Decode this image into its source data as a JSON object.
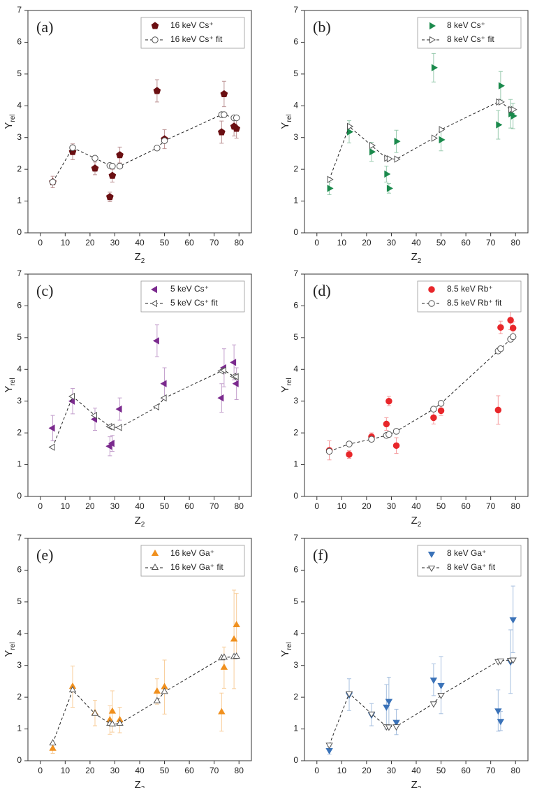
{
  "chart_data": [
    {
      "type": "scatter",
      "label": "(a)",
      "x_label": {
        "text": "Z",
        "subscript": "2"
      },
      "y_label": {
        "text": "Y",
        "subscript": "rel"
      },
      "x": [
        5,
        13,
        22,
        28,
        29,
        32,
        47,
        50,
        73,
        74,
        78,
        79
      ],
      "xlim": [
        -5,
        85
      ],
      "xticks": [
        0,
        10,
        20,
        30,
        40,
        50,
        60,
        70,
        80
      ],
      "ylim": [
        0,
        7
      ],
      "yticks": [
        0,
        1,
        2,
        3,
        4,
        5,
        6,
        7
      ],
      "legend": "upper right",
      "series": [
        {
          "name": "16 keV Cs⁺",
          "color": "#6b0f12",
          "marker": "pentagon",
          "filled": true,
          "values": [
            1.6,
            2.55,
            2.03,
            1.13,
            1.8,
            2.45,
            4.47,
            2.95,
            3.17,
            4.37,
            3.35,
            3.28
          ],
          "errors": [
            0.18,
            0.25,
            0.2,
            0.15,
            0.2,
            0.25,
            0.35,
            0.3,
            0.35,
            0.4,
            0.3,
            0.3
          ]
        },
        {
          "name": "16 keV Cs⁺ fit",
          "color": "#555555",
          "marker": "circle",
          "filled": false,
          "line": "dashed",
          "values": [
            1.6,
            2.68,
            2.35,
            2.12,
            2.1,
            2.1,
            2.67,
            2.9,
            3.72,
            3.72,
            3.62,
            3.62
          ]
        }
      ]
    },
    {
      "type": "scatter",
      "label": "(b)",
      "x_label": {
        "text": "Z",
        "subscript": "2"
      },
      "y_label": {
        "text": "Y",
        "subscript": "rel"
      },
      "x": [
        5,
        13,
        22,
        28,
        29,
        32,
        47,
        50,
        73,
        74,
        78,
        79
      ],
      "xlim": [
        -5,
        85
      ],
      "xticks": [
        0,
        10,
        20,
        30,
        40,
        50,
        60,
        70,
        80
      ],
      "ylim": [
        0,
        7
      ],
      "yticks": [
        0,
        1,
        2,
        3,
        4,
        5,
        6,
        7
      ],
      "legend": "upper right",
      "series": [
        {
          "name": "8 keV Cs⁺",
          "color": "#1b8a4c",
          "marker": "triangle-right",
          "filled": true,
          "values": [
            1.4,
            3.18,
            2.55,
            1.85,
            1.4,
            2.88,
            5.2,
            2.93,
            3.4,
            4.63,
            3.75,
            3.68
          ],
          "errors": [
            0.2,
            0.35,
            0.3,
            0.25,
            0.15,
            0.35,
            0.45,
            0.35,
            0.45,
            0.45,
            0.45,
            0.4
          ]
        },
        {
          "name": "8 keV Cs⁺ fit",
          "color": "#555555",
          "marker": "triangle-right",
          "filled": false,
          "line": "dashed",
          "values": [
            1.68,
            3.35,
            2.75,
            2.35,
            2.33,
            2.32,
            2.98,
            3.25,
            4.12,
            4.12,
            3.88,
            3.88
          ]
        }
      ]
    },
    {
      "type": "scatter",
      "label": "(c)",
      "x_label": {
        "text": "Z",
        "subscript": "2"
      },
      "y_label": {
        "text": "Y",
        "subscript": "rel"
      },
      "x": [
        5,
        13,
        22,
        28,
        29,
        32,
        47,
        50,
        73,
        74,
        78,
        79
      ],
      "xlim": [
        -5,
        85
      ],
      "xticks": [
        0,
        10,
        20,
        30,
        40,
        50,
        60,
        70,
        80
      ],
      "ylim": [
        0,
        7
      ],
      "yticks": [
        0,
        1,
        2,
        3,
        4,
        5,
        6,
        7
      ],
      "legend": "upper right",
      "series": [
        {
          "name": "5 keV Cs⁺",
          "color": "#7b2a8e",
          "marker": "triangle-left",
          "filled": true,
          "values": [
            2.15,
            3.0,
            2.43,
            1.58,
            1.67,
            2.75,
            4.9,
            3.55,
            3.1,
            4.05,
            4.22,
            3.55
          ],
          "errors": [
            0.4,
            0.4,
            0.35,
            0.3,
            0.25,
            0.35,
            0.5,
            0.5,
            0.45,
            0.6,
            0.55,
            0.5
          ]
        },
        {
          "name": "5 keV Cs⁺ fit",
          "color": "#555555",
          "marker": "triangle-left",
          "filled": false,
          "line": "dashed",
          "values": [
            1.55,
            3.15,
            2.55,
            2.2,
            2.18,
            2.17,
            2.82,
            3.1,
            3.95,
            3.97,
            3.78,
            3.77
          ]
        }
      ]
    },
    {
      "type": "scatter",
      "label": "(d)",
      "x_label": {
        "text": "Z",
        "subscript": "2"
      },
      "y_label": {
        "text": "Y",
        "subscript": "rel"
      },
      "x": [
        5,
        13,
        22,
        28,
        29,
        32,
        47,
        50,
        73,
        74,
        78,
        79
      ],
      "xlim": [
        -5,
        85
      ],
      "xticks": [
        0,
        10,
        20,
        30,
        40,
        50,
        60,
        70,
        80
      ],
      "ylim": [
        0,
        7
      ],
      "yticks": [
        0,
        1,
        2,
        3,
        4,
        5,
        6,
        7
      ],
      "legend": "upper right",
      "series": [
        {
          "name": "8.5 keV Rb⁺",
          "color": "#e8262a",
          "marker": "circle",
          "filled": true,
          "values": [
            1.45,
            1.32,
            1.88,
            2.28,
            3.0,
            1.6,
            2.48,
            2.7,
            2.72,
            5.32,
            5.55,
            5.3
          ],
          "errors": [
            0.3,
            0.12,
            0.12,
            0.2,
            0.15,
            0.25,
            0.2,
            0.15,
            0.45,
            0.2,
            0.3,
            0.2
          ]
        },
        {
          "name": "8.5 keV Rb⁺ fit",
          "color": "#555555",
          "marker": "circle",
          "filled": false,
          "line": "dashed",
          "values": [
            1.42,
            1.65,
            1.8,
            1.92,
            1.95,
            2.05,
            2.75,
            2.93,
            4.58,
            4.65,
            4.95,
            5.03
          ]
        }
      ]
    },
    {
      "type": "scatter",
      "label": "(e)",
      "x_label": {
        "text": "Z",
        "subscript": "2"
      },
      "y_label": {
        "text": "Y",
        "subscript": "rel"
      },
      "x": [
        5,
        13,
        22,
        28,
        29,
        32,
        47,
        50,
        73,
        74,
        78,
        79
      ],
      "xlim": [
        -5,
        85
      ],
      "xticks": [
        0,
        10,
        20,
        30,
        40,
        50,
        60,
        70,
        80
      ],
      "ylim": [
        0,
        7
      ],
      "yticks": [
        0,
        1,
        2,
        3,
        4,
        5,
        6,
        7
      ],
      "legend": "upper right",
      "series": [
        {
          "name": "16 keV Ga⁺",
          "color": "#f0901e",
          "marker": "triangle-up",
          "filled": true,
          "values": [
            0.38,
            2.33,
            1.5,
            1.28,
            1.55,
            1.28,
            2.18,
            2.32,
            1.53,
            2.93,
            3.82,
            4.27
          ],
          "errors": [
            0.15,
            0.65,
            0.4,
            0.45,
            0.65,
            0.4,
            0.4,
            0.85,
            0.6,
            0.65,
            1.55,
            1.0
          ]
        },
        {
          "name": "16 keV Ga⁺ fit",
          "color": "#555555",
          "marker": "triangle-up",
          "filled": false,
          "line": "dashed",
          "values": [
            0.55,
            2.22,
            1.48,
            1.17,
            1.15,
            1.17,
            1.88,
            2.17,
            3.23,
            3.25,
            3.27,
            3.28
          ]
        }
      ]
    },
    {
      "type": "scatter",
      "label": "(f)",
      "x_label": {
        "text": "Z",
        "subscript": "2"
      },
      "y_label": {
        "text": "Y",
        "subscript": "rel"
      },
      "x": [
        5,
        13,
        22,
        28,
        29,
        32,
        47,
        50,
        73,
        74,
        78,
        79
      ],
      "xlim": [
        -5,
        85
      ],
      "xticks": [
        0,
        10,
        20,
        30,
        40,
        50,
        60,
        70,
        80
      ],
      "ylim": [
        0,
        7
      ],
      "yticks": [
        0,
        1,
        2,
        3,
        4,
        5,
        6,
        7
      ],
      "legend": "upper right",
      "series": [
        {
          "name": "8 keV Ga⁺",
          "color": "#3a72b8",
          "marker": "triangle-down",
          "filled": true,
          "values": [
            0.33,
            2.08,
            1.45,
            1.7,
            1.88,
            1.22,
            2.55,
            2.38,
            1.58,
            1.25,
            3.12,
            4.45
          ],
          "errors": [
            0.12,
            0.5,
            0.35,
            0.7,
            0.75,
            0.4,
            0.5,
            0.9,
            0.65,
            0.3,
            1.0,
            1.05
          ]
        },
        {
          "name": "8 keV Ga⁺ fit",
          "color": "#555555",
          "marker": "triangle-down",
          "filled": false,
          "line": "dashed",
          "values": [
            0.5,
            2.12,
            1.48,
            1.08,
            1.07,
            1.08,
            1.8,
            2.07,
            3.13,
            3.15,
            3.17,
            3.18
          ]
        }
      ]
    }
  ]
}
